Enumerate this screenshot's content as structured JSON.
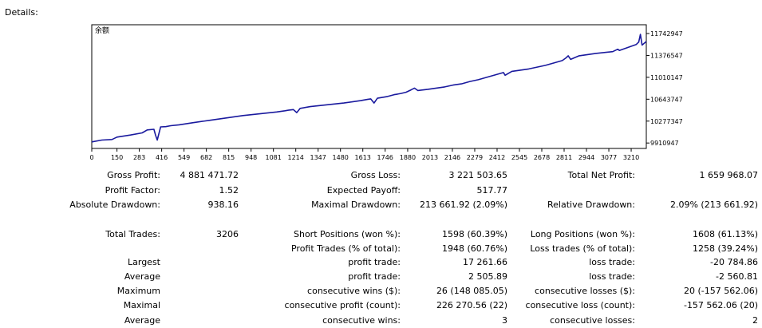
{
  "header": {
    "details_label": "Details:"
  },
  "chart_data": {
    "type": "line",
    "series_label": "余额",
    "x_ticks": [
      0,
      150,
      283,
      416,
      549,
      682,
      815,
      948,
      1081,
      1214,
      1347,
      1480,
      1613,
      1746,
      1880,
      2013,
      2146,
      2279,
      2412,
      2545,
      2678,
      2811,
      2944,
      3077,
      3210
    ],
    "y_ticks": [
      9910947,
      10277347,
      10643747,
      11010147,
      11376547,
      11742947
    ],
    "xlim": [
      0,
      3300
    ],
    "ylim": [
      9820000,
      11890000
    ],
    "line_color": "#1a1a9e",
    "series": [
      {
        "x": [
          0,
          60,
          120,
          150,
          230,
          300,
          330,
          370,
          380,
          390,
          410,
          440,
          470,
          520,
          600,
          700,
          800,
          900,
          1000,
          1100,
          1150,
          1170,
          1200,
          1220,
          1240,
          1300,
          1400,
          1500,
          1600,
          1640,
          1660,
          1680,
          1700,
          1760,
          1800,
          1820,
          1840,
          1870,
          1900,
          1920,
          1940,
          2000,
          2050,
          2100,
          2150,
          2200,
          2250,
          2300,
          2400,
          2450,
          2460,
          2500,
          2600,
          2700,
          2750,
          2800,
          2820,
          2835,
          2850,
          2900,
          3000,
          3100,
          3130,
          3140,
          3200,
          3240,
          3255,
          3265,
          3275,
          3300
        ],
        "y": [
          9930000,
          9960000,
          9970000,
          10010000,
          10045000,
          10080000,
          10130000,
          10140000,
          10040000,
          9960000,
          10180000,
          10185000,
          10200000,
          10215000,
          10250000,
          10290000,
          10330000,
          10370000,
          10400000,
          10430000,
          10450000,
          10460000,
          10470000,
          10420000,
          10490000,
          10520000,
          10550000,
          10580000,
          10620000,
          10640000,
          10650000,
          10580000,
          10660000,
          10690000,
          10720000,
          10730000,
          10740000,
          10760000,
          10800000,
          10830000,
          10790000,
          10810000,
          10830000,
          10850000,
          10880000,
          10900000,
          10940000,
          10970000,
          11050000,
          11090000,
          11045000,
          11110000,
          11150000,
          11210000,
          11250000,
          11290000,
          11330000,
          11370000,
          11310000,
          11370000,
          11410000,
          11440000,
          11480000,
          11460000,
          11520000,
          11560000,
          11600000,
          11730000,
          11550000,
          11610000
        ]
      }
    ]
  },
  "stats_rows": [
    [
      "Gross Profit:",
      "4 881 471.72",
      "Gross Loss:",
      "3 221 503.65",
      "Total Net Profit:",
      "1 659 968.07"
    ],
    [
      "Profit Factor:",
      "1.52",
      "Expected Payoff:",
      "517.77",
      "",
      ""
    ],
    [
      "Absolute Drawdown:",
      "938.16",
      "Maximal Drawdown:",
      "213 661.92 (2.09%)",
      "Relative Drawdown:",
      "2.09% (213 661.92)"
    ],
    [
      "Total Trades:",
      "3206",
      "Short Positions (won %):",
      "1598 (60.39%)",
      "Long Positions (won %):",
      "1608 (61.13%)"
    ],
    [
      "",
      "",
      "Profit Trades (% of total):",
      "1948 (60.76%)",
      "Loss trades (% of total):",
      "1258 (39.24%)"
    ],
    [
      "Largest",
      "",
      "profit trade:",
      "17 261.66",
      "loss trade:",
      "-20 784.86"
    ],
    [
      "Average",
      "",
      "profit trade:",
      "2 505.89",
      "loss trade:",
      "-2 560.81"
    ],
    [
      "Maximum",
      "",
      "consecutive wins ($):",
      "26 (148 085.05)",
      "consecutive losses ($):",
      "20 (-157 562.06)"
    ],
    [
      "Maximal",
      "",
      "consecutive profit (count):",
      "226 270.56 (22)",
      "consecutive loss (count):",
      "-157 562.06 (20)"
    ],
    [
      "Average",
      "",
      "consecutive wins:",
      "3",
      "consecutive losses:",
      "2"
    ]
  ]
}
